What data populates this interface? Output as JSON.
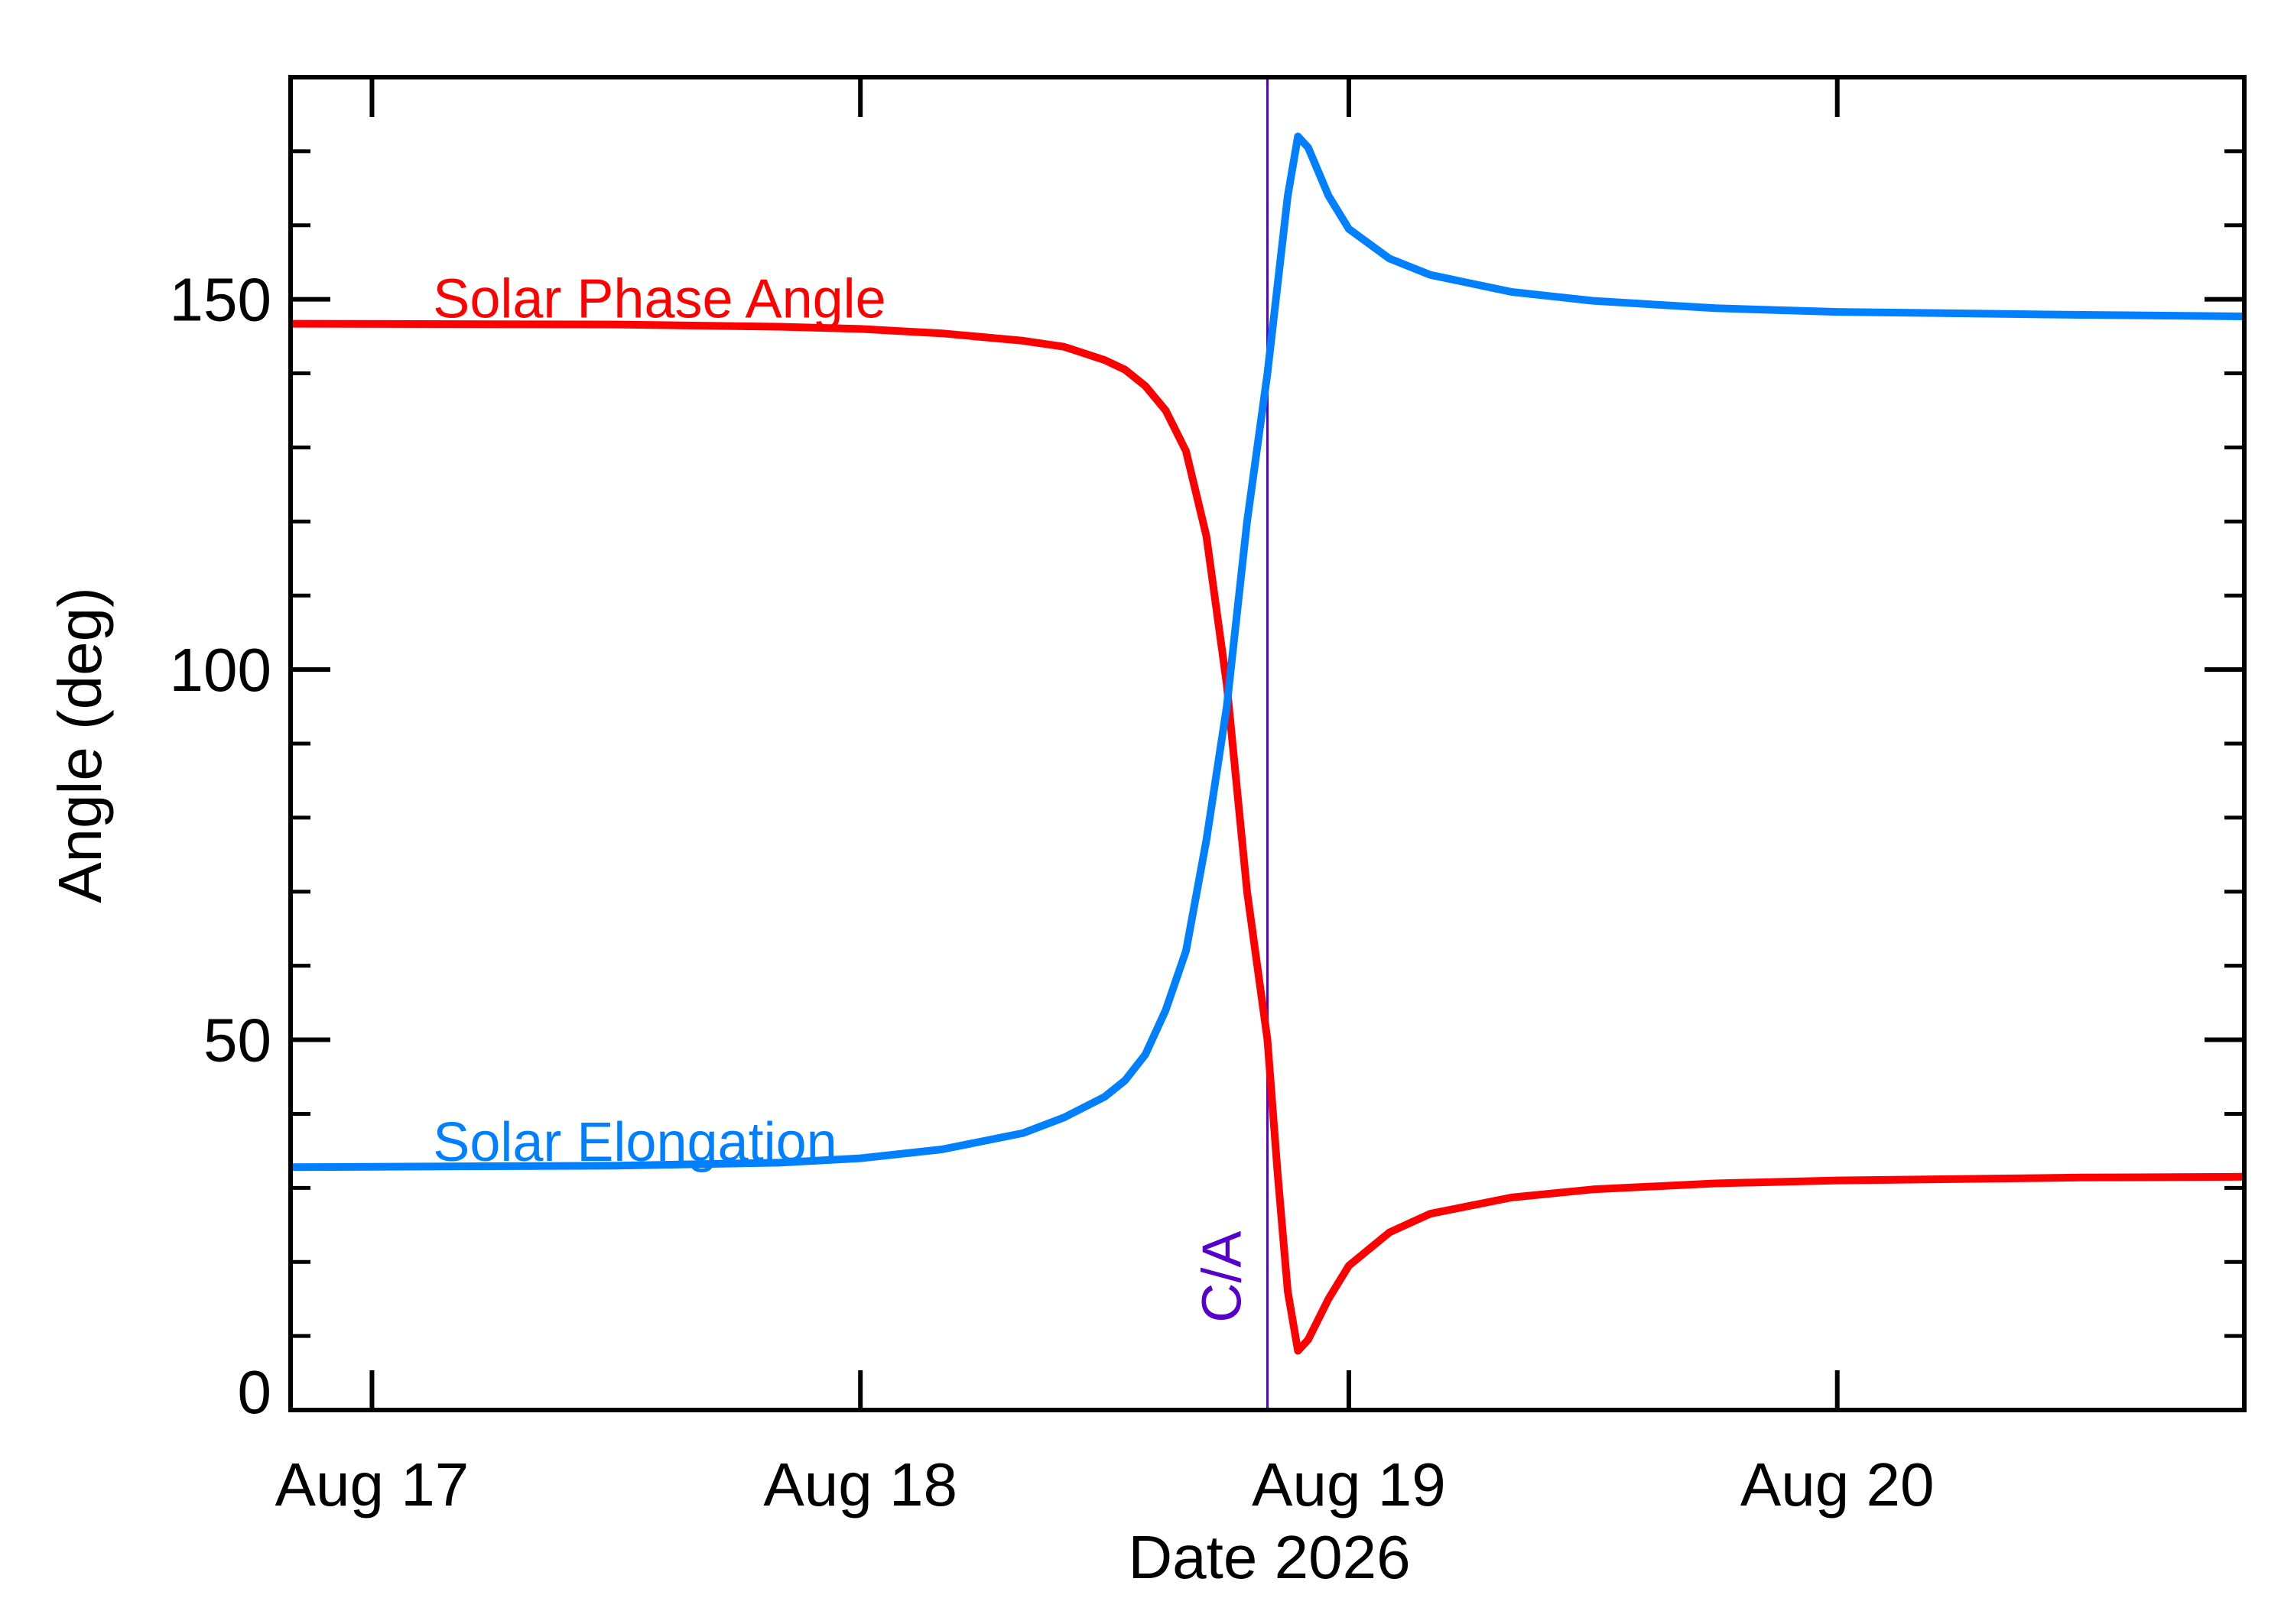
{
  "chart_data": {
    "type": "line",
    "xlabel": "Date 2026",
    "ylabel": "Angle (deg)",
    "x_tick_labels": [
      {
        "label": "Aug 17",
        "x": "2026-08-17"
      },
      {
        "label": "Aug 18",
        "x": "2026-08-18"
      },
      {
        "label": "Aug 19",
        "x": "2026-08-19"
      },
      {
        "label": "Aug 20",
        "x": "2026-08-20"
      }
    ],
    "xlim": [
      "2026-08-16 20:00",
      "2026-08-20 20:00"
    ],
    "ylim": [
      0,
      180
    ],
    "y_tick_labels": [
      "0",
      "50",
      "100",
      "150"
    ],
    "y_tick_values": [
      0,
      50,
      100,
      150
    ],
    "y_minor_step": 10,
    "grid": false,
    "vline": {
      "label": "C/A",
      "x": "2026-08-18 20:00",
      "color": "#5500cc"
    },
    "series": [
      {
        "name": "Solar Phase Angle",
        "color": "#ff0000",
        "points": [
          [
            "2026-08-16 20:00",
            146.7
          ],
          [
            "2026-08-17 12:00",
            146.6
          ],
          [
            "2026-08-17 20:00",
            146.3
          ],
          [
            "2026-08-18 00:00",
            146.0
          ],
          [
            "2026-08-18 04:00",
            145.4
          ],
          [
            "2026-08-18 08:00",
            144.4
          ],
          [
            "2026-08-18 10:00",
            143.6
          ],
          [
            "2026-08-18 12:00",
            141.8
          ],
          [
            "2026-08-18 13:00",
            140.5
          ],
          [
            "2026-08-18 14:00",
            138.3
          ],
          [
            "2026-08-18 15:00",
            135.0
          ],
          [
            "2026-08-18 16:00",
            129.5
          ],
          [
            "2026-08-18 17:00",
            118.0
          ],
          [
            "2026-08-18 18:00",
            98.0
          ],
          [
            "2026-08-18 19:00",
            70.0
          ],
          [
            "2026-08-18 20:00",
            50.0
          ],
          [
            "2026-08-18 20:30",
            32.0
          ],
          [
            "2026-08-18 21:00",
            16.0
          ],
          [
            "2026-08-18 21:30",
            8.0
          ],
          [
            "2026-08-18 22:00",
            9.5
          ],
          [
            "2026-08-18 23:00",
            15.0
          ],
          [
            "2026-08-19 00:00",
            19.5
          ],
          [
            "2026-08-19 02:00",
            24.0
          ],
          [
            "2026-08-19 04:00",
            26.5
          ],
          [
            "2026-08-19 08:00",
            28.7
          ],
          [
            "2026-08-19 12:00",
            29.8
          ],
          [
            "2026-08-19 18:00",
            30.6
          ],
          [
            "2026-08-20 00:00",
            31.0
          ],
          [
            "2026-08-20 12:00",
            31.4
          ],
          [
            "2026-08-20 20:00",
            31.5
          ]
        ]
      },
      {
        "name": "Solar Elongation",
        "color": "#0080ff",
        "points": [
          [
            "2026-08-16 20:00",
            32.8
          ],
          [
            "2026-08-17 12:00",
            33.0
          ],
          [
            "2026-08-17 20:00",
            33.4
          ],
          [
            "2026-08-18 00:00",
            34.0
          ],
          [
            "2026-08-18 04:00",
            35.2
          ],
          [
            "2026-08-18 08:00",
            37.4
          ],
          [
            "2026-08-18 10:00",
            39.5
          ],
          [
            "2026-08-18 12:00",
            42.3
          ],
          [
            "2026-08-18 13:00",
            44.5
          ],
          [
            "2026-08-18 14:00",
            48.0
          ],
          [
            "2026-08-18 15:00",
            54.0
          ],
          [
            "2026-08-18 16:00",
            62.0
          ],
          [
            "2026-08-18 17:00",
            77.0
          ],
          [
            "2026-08-18 18:00",
            95.0
          ],
          [
            "2026-08-18 19:00",
            120.0
          ],
          [
            "2026-08-18 20:00",
            140.0
          ],
          [
            "2026-08-18 20:30",
            152.0
          ],
          [
            "2026-08-18 21:00",
            164.0
          ],
          [
            "2026-08-18 21:30",
            172.0
          ],
          [
            "2026-08-18 22:00",
            170.5
          ],
          [
            "2026-08-18 23:00",
            164.0
          ],
          [
            "2026-08-19 00:00",
            159.5
          ],
          [
            "2026-08-19 02:00",
            155.5
          ],
          [
            "2026-08-19 04:00",
            153.3
          ],
          [
            "2026-08-19 08:00",
            151.0
          ],
          [
            "2026-08-19 12:00",
            149.8
          ],
          [
            "2026-08-19 18:00",
            148.8
          ],
          [
            "2026-08-20 00:00",
            148.3
          ],
          [
            "2026-08-20 12:00",
            147.9
          ],
          [
            "2026-08-20 20:00",
            147.7
          ]
        ]
      }
    ]
  }
}
